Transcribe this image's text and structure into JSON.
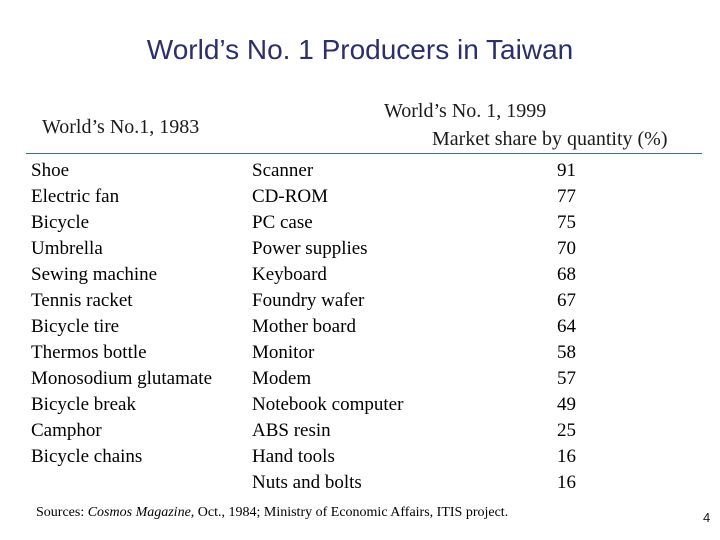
{
  "slide": {
    "title": "World’s No. 1 Producers in Taiwan",
    "page_number": "4"
  },
  "table": {
    "header_1983": "World’s No.1, 1983",
    "header_1999": "World’s No. 1, 1999",
    "header_share": "Market share by quantity (%)",
    "products_1983": [
      "Shoe",
      "Electric fan",
      "Bicycle",
      "Umbrella",
      "Sewing machine",
      "Tennis racket",
      "Bicycle tire",
      "Thermos bottle",
      "Monosodium glutamate",
      "Bicycle break",
      "Camphor",
      "Bicycle chains"
    ],
    "products_1999": [
      "Scanner",
      "CD-ROM",
      "PC case",
      "Power supplies",
      "Keyboard",
      "Foundry wafer",
      "Mother board",
      "Monitor",
      "Modem",
      "Notebook computer",
      "ABS resin",
      "Hand tools",
      "Nuts and bolts"
    ],
    "market_share_1999": [
      91,
      77,
      75,
      70,
      68,
      67,
      64,
      58,
      57,
      49,
      25,
      16,
      16
    ]
  },
  "sources": {
    "prefix": "Sources: ",
    "magazine": "Cosmos Magazine",
    "rest": ", Oct., 1984; Ministry of Economic Affairs, ITIS project."
  }
}
